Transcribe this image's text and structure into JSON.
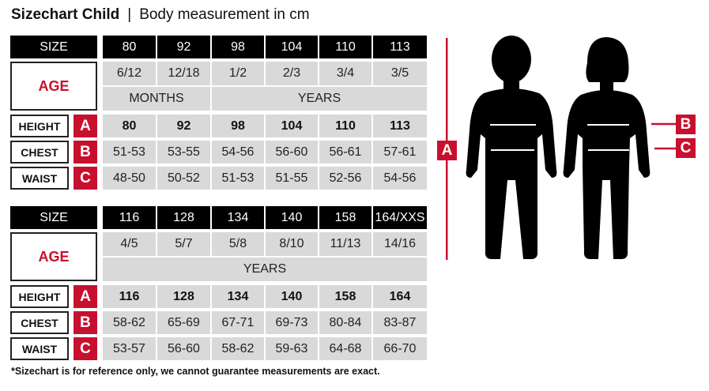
{
  "title": {
    "main": "Sizechart Child",
    "separator": "|",
    "sub": "Body measurement in cm"
  },
  "labels": {
    "size": "SIZE",
    "age": "AGE",
    "height": "HEIGHT",
    "chest": "CHEST",
    "waist": "WAIST",
    "letter_height": "A",
    "letter_chest": "B",
    "letter_waist": "C"
  },
  "tables": [
    {
      "sizes": [
        "80",
        "92",
        "98",
        "104",
        "110",
        "113"
      ],
      "ages": [
        "6/12",
        "12/18",
        "1/2",
        "2/3",
        "3/4",
        "3/5"
      ],
      "age_units": [
        {
          "label": "MONTHS",
          "span": 2
        },
        {
          "label": "YEARS",
          "span": 4
        }
      ],
      "height": [
        "80",
        "92",
        "98",
        "104",
        "110",
        "113"
      ],
      "chest": [
        "51-53",
        "53-55",
        "54-56",
        "56-60",
        "56-61",
        "57-61"
      ],
      "waist": [
        "48-50",
        "50-52",
        "51-53",
        "51-55",
        "52-56",
        "54-56"
      ]
    },
    {
      "sizes": [
        "116",
        "128",
        "134",
        "140",
        "158",
        "164/XXS"
      ],
      "ages": [
        "4/5",
        "5/7",
        "5/8",
        "8/10",
        "11/13",
        "14/16"
      ],
      "age_units": [
        {
          "label": "YEARS",
          "span": 6
        }
      ],
      "height": [
        "116",
        "128",
        "134",
        "140",
        "158",
        "164"
      ],
      "chest": [
        "58-62",
        "65-69",
        "67-71",
        "69-73",
        "80-84",
        "83-87"
      ],
      "waist": [
        "53-57",
        "56-60",
        "58-62",
        "59-63",
        "64-68",
        "66-70"
      ]
    }
  ],
  "figure": {
    "marker_a": "A",
    "marker_b": "B",
    "marker_c": "C",
    "accent": "#c8102e"
  },
  "footnote": "*Sizechart is for reference only, we cannot guarantee measurements are exact."
}
